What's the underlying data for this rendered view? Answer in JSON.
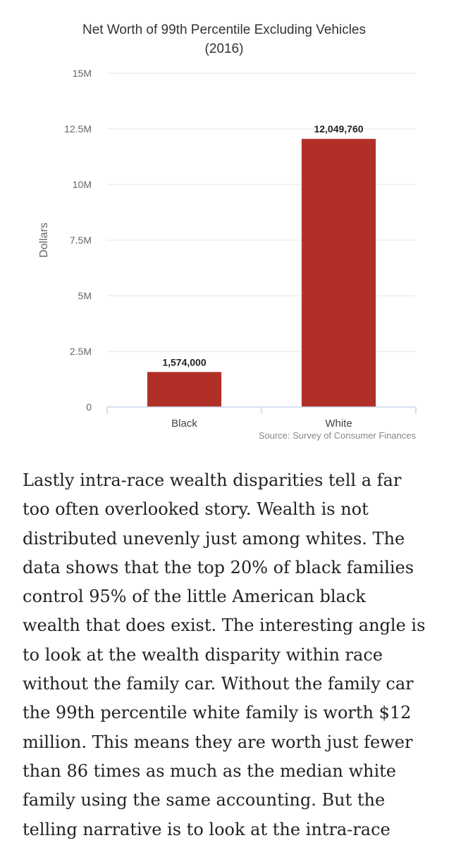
{
  "chart_data": {
    "type": "bar",
    "title": "Net Worth of 99th Percentile Excluding Vehicles",
    "subtitle": "(2016)",
    "xlabel": "",
    "ylabel": "Dollars",
    "categories": [
      "Black",
      "White"
    ],
    "values": [
      1574000,
      12049760
    ],
    "data_labels": [
      "1,574,000",
      "12,049,760"
    ],
    "y_ticks": [
      0,
      2500000,
      5000000,
      7500000,
      10000000,
      12500000,
      15000000
    ],
    "y_tick_labels": [
      "0",
      "2.5M",
      "5M",
      "7.5M",
      "10M",
      "12.5M",
      "15M"
    ],
    "ylim": [
      0,
      15000000
    ],
    "grid": true,
    "legend": "none",
    "bar_color": "#b03027",
    "source": "Source: Survey of Consumer Finances"
  },
  "article": {
    "lines": [
      "Lastly intra-race wealth disparities tell a far",
      "too often overlooked story. Wealth is not",
      "distributed unevenly just among whites. The",
      "data shows that the top 20% of black families",
      "control 95% of the little American black",
      "wealth that does exist. The interesting angle is",
      "to look at the wealth disparity within race",
      "without the family car. Without the family car",
      "the 99th percentile white family is worth $12",
      "million. This means they are worth just fewer",
      "than 86 times as much as the median white",
      "family using the same accounting. But the",
      "telling narrative is to look at the intra-race"
    ]
  }
}
